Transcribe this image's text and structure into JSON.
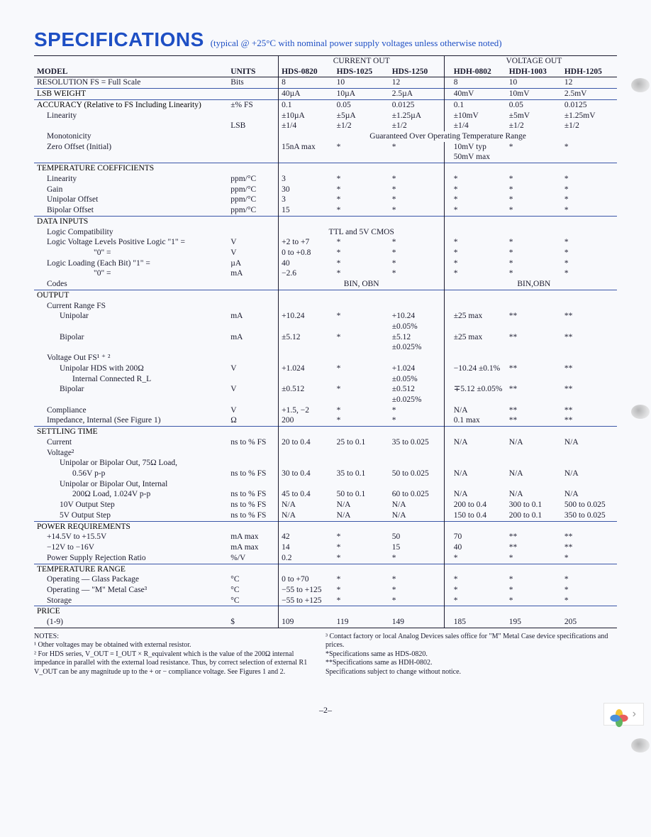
{
  "title": "SPECIFICATIONS",
  "subtitle": "(typical @ +25°C with nominal power supply voltages unless otherwise noted)",
  "group_headers": [
    "CURRENT OUT",
    "VOLTAGE OUT"
  ],
  "col_headers": {
    "model": "MODEL",
    "units": "UNITS",
    "c1": "HDS-0820",
    "c2": "HDS-1025",
    "c3": "HDS-1250",
    "c4": "HDH-0802",
    "c5": "HDH-1003",
    "c6": "HDH-1205"
  },
  "rows": [
    {
      "type": "data",
      "top_rule": true,
      "label": "RESOLUTION  FS = Full Scale",
      "units": "Bits",
      "v": [
        "8",
        "10",
        "12",
        "8",
        "10",
        "12"
      ]
    },
    {
      "type": "section",
      "label": "LSB WEIGHT",
      "units": "",
      "v": [
        "40µA",
        "10µA",
        "2.5µA",
        "40mV",
        "10mV",
        "2.5mV"
      ]
    },
    {
      "type": "section",
      "label": "ACCURACY (Relative to FS Including Linearity)",
      "units": "±% FS",
      "v": [
        "0.1",
        "0.05",
        "0.0125",
        "0.1",
        "0.05",
        "0.0125"
      ]
    },
    {
      "type": "data",
      "ind": 1,
      "label": "Linearity",
      "units": "",
      "v": [
        "±10µA",
        "±5µA",
        "±1.25µA",
        "±10mV",
        "±5mV",
        "±1.25mV"
      ]
    },
    {
      "type": "data",
      "label": "",
      "units": "LSB",
      "v": [
        "±1/4",
        "±1/2",
        "±1/2",
        "±1/4",
        "±1/2",
        "±1/2"
      ]
    },
    {
      "type": "span",
      "ind": 1,
      "label": "Monotonicity",
      "units": "",
      "span_text": "Guaranteed Over Operating Temperature Range"
    },
    {
      "type": "data",
      "ind": 1,
      "label": "Zero Offset (Initial)",
      "units": "",
      "v": [
        "15nA max",
        "*",
        "*",
        "10mV typ",
        "*",
        "*"
      ]
    },
    {
      "type": "data",
      "label": "",
      "units": "",
      "v": [
        "",
        "",
        "",
        "50mV max",
        "",
        ""
      ]
    },
    {
      "type": "section",
      "label": "TEMPERATURE COEFFICIENTS",
      "units": "",
      "v": [
        "",
        "",
        "",
        "",
        "",
        ""
      ]
    },
    {
      "type": "data",
      "ind": 1,
      "label": "Linearity",
      "units": "ppm/°C",
      "v": [
        "3",
        "*",
        "*",
        "*",
        "*",
        "*"
      ]
    },
    {
      "type": "data",
      "ind": 1,
      "label": "Gain",
      "units": "ppm/°C",
      "v": [
        "30",
        "*",
        "*",
        "*",
        "*",
        "*"
      ]
    },
    {
      "type": "data",
      "ind": 1,
      "label": "Unipolar Offset",
      "units": "ppm/°C",
      "v": [
        "3",
        "*",
        "*",
        "*",
        "*",
        "*"
      ]
    },
    {
      "type": "data",
      "ind": 1,
      "label": "Bipolar Offset",
      "units": "ppm/°C",
      "v": [
        "15",
        "*",
        "*",
        "*",
        "*",
        "*"
      ]
    },
    {
      "type": "section",
      "label": "DATA INPUTS",
      "units": "",
      "v": [
        "",
        "",
        "",
        "",
        "",
        ""
      ]
    },
    {
      "type": "splitspan",
      "ind": 1,
      "label": "Logic Compatibility",
      "units": "",
      "left_span": "TTL and 5V CMOS",
      "right": [
        "",
        "",
        ""
      ]
    },
    {
      "type": "data",
      "ind": 1,
      "label": "Logic Voltage Levels Positive Logic \"1\"   =",
      "units": "V",
      "v": [
        "+2 to +7",
        "*",
        "*",
        "*",
        "*",
        "*"
      ]
    },
    {
      "type": "data",
      "ind": 4,
      "label": "\"0\"   =",
      "units": "V",
      "v": [
        "0 to +0.8",
        "*",
        "*",
        "*",
        "*",
        "*"
      ]
    },
    {
      "type": "data",
      "ind": 1,
      "label": "Logic Loading (Each Bit)          \"1\"   =",
      "units": "µA",
      "v": [
        "40",
        "*",
        "*",
        "*",
        "*",
        "*"
      ]
    },
    {
      "type": "data",
      "ind": 4,
      "label": "\"0\"   =",
      "units": "mA",
      "v": [
        "−2.6",
        "*",
        "*",
        "*",
        "*",
        "*"
      ]
    },
    {
      "type": "splitspan",
      "ind": 1,
      "label": "Codes",
      "units": "",
      "left_span": "BIN, OBN",
      "right_span": "BIN,OBN"
    },
    {
      "type": "section",
      "label": "OUTPUT",
      "units": "",
      "v": [
        "",
        "",
        "",
        "",
        "",
        ""
      ]
    },
    {
      "type": "data",
      "ind": 1,
      "label": "Current Range FS",
      "units": "",
      "v": [
        "",
        "",
        "",
        "",
        "",
        ""
      ]
    },
    {
      "type": "data",
      "ind": 2,
      "label": "Unipolar",
      "units": "mA",
      "v": [
        "+10.24",
        "*",
        "+10.24",
        "±25 max",
        "**",
        "**"
      ]
    },
    {
      "type": "data",
      "label": "",
      "units": "",
      "v": [
        "",
        "",
        "±0.05%",
        "",
        "",
        ""
      ]
    },
    {
      "type": "data",
      "ind": 2,
      "label": "Bipolar",
      "units": "mA",
      "v": [
        "±5.12",
        "*",
        "±5.12",
        "±25 max",
        "**",
        "**"
      ]
    },
    {
      "type": "data",
      "label": "",
      "units": "",
      "v": [
        "",
        "",
        "±0.025%",
        "",
        "",
        ""
      ]
    },
    {
      "type": "data",
      "ind": 1,
      "label": "Voltage Out FS¹ ⁺ ²",
      "units": "",
      "v": [
        "",
        "",
        "",
        "",
        "",
        ""
      ]
    },
    {
      "type": "data",
      "ind": 2,
      "label": "Unipolar    HDS with 200Ω",
      "units": "V",
      "v": [
        "+1.024",
        "*",
        "+1.024",
        "−10.24 ±0.1%",
        "**",
        "**"
      ]
    },
    {
      "type": "data",
      "ind": 3,
      "label": "Internal Connected R_L",
      "units": "",
      "v": [
        "",
        "",
        "±0.05%",
        "",
        "",
        ""
      ]
    },
    {
      "type": "data",
      "ind": 2,
      "label": "Bipolar",
      "units": "V",
      "v": [
        "±0.512",
        "*",
        "±0.512",
        "∓5.12 ±0.05%",
        "**",
        "**"
      ]
    },
    {
      "type": "data",
      "label": "",
      "units": "",
      "v": [
        "",
        "",
        "±0.025%",
        "",
        "",
        ""
      ]
    },
    {
      "type": "data",
      "ind": 1,
      "label": "Compliance",
      "units": "V",
      "v": [
        "+1.5, −2",
        "*",
        "*",
        "N/A",
        "**",
        "**"
      ]
    },
    {
      "type": "data",
      "ind": 1,
      "label": "Impedance, Internal (See Figure 1)",
      "units": "Ω",
      "v": [
        "200",
        "*",
        "*",
        "0.1 max",
        "**",
        "**"
      ]
    },
    {
      "type": "section",
      "label": "SETTLING TIME",
      "units": "",
      "v": [
        "",
        "",
        "",
        "",
        "",
        ""
      ]
    },
    {
      "type": "data",
      "ind": 1,
      "label": "Current",
      "units": "ns to % FS",
      "v": [
        "20 to 0.4",
        "25 to 0.1",
        "35 to 0.025",
        "N/A",
        "N/A",
        "N/A"
      ]
    },
    {
      "type": "data",
      "ind": 1,
      "label": "Voltage²",
      "units": "",
      "v": [
        "",
        "",
        "",
        "",
        "",
        ""
      ]
    },
    {
      "type": "data",
      "ind": 2,
      "label": "Unipolar or Bipolar Out, 75Ω Load,",
      "units": "",
      "v": [
        "",
        "",
        "",
        "",
        "",
        ""
      ]
    },
    {
      "type": "data",
      "ind": 3,
      "label": "0.56V p-p",
      "units": "ns to % FS",
      "v": [
        "30 to 0.4",
        "35 to 0.1",
        "50 to 0.025",
        "N/A",
        "N/A",
        "N/A"
      ]
    },
    {
      "type": "data",
      "ind": 2,
      "label": "Unipolar or Bipolar Out, Internal",
      "units": "",
      "v": [
        "",
        "",
        "",
        "",
        "",
        ""
      ]
    },
    {
      "type": "data",
      "ind": 3,
      "label": "200Ω Load, 1.024V p-p",
      "units": "ns to % FS",
      "v": [
        "45 to 0.4",
        "50 to 0.1",
        "60 to 0.025",
        "N/A",
        "N/A",
        "N/A"
      ]
    },
    {
      "type": "data",
      "ind": 2,
      "label": "10V Output Step",
      "units": "ns to % FS",
      "v": [
        "N/A",
        "N/A",
        "N/A",
        "200 to 0.4",
        "300 to 0.1",
        "500 to 0.025"
      ]
    },
    {
      "type": "data",
      "ind": 2,
      "label": "5V Output Step",
      "units": "ns to % FS",
      "v": [
        "N/A",
        "N/A",
        "N/A",
        "150 to 0.4",
        "200 to 0.1",
        "350 to 0.025"
      ]
    },
    {
      "type": "section",
      "label": "POWER REQUIREMENTS",
      "units": "",
      "v": [
        "",
        "",
        "",
        "",
        "",
        ""
      ]
    },
    {
      "type": "data",
      "ind": 1,
      "label": "+14.5V to +15.5V",
      "units": "mA max",
      "v": [
        "42",
        "*",
        "50",
        "70",
        "**",
        "**"
      ]
    },
    {
      "type": "data",
      "ind": 1,
      "label": "−12V to −16V",
      "units": "mA max",
      "v": [
        "14",
        "*",
        "15",
        "40",
        "**",
        "**"
      ]
    },
    {
      "type": "data",
      "ind": 1,
      "label": "Power Supply Rejection Ratio",
      "units": "%/V",
      "v": [
        "0.2",
        "*",
        "*",
        "*",
        "*",
        "*"
      ]
    },
    {
      "type": "section",
      "label": "TEMPERATURE RANGE",
      "units": "",
      "v": [
        "",
        "",
        "",
        "",
        "",
        ""
      ]
    },
    {
      "type": "data",
      "ind": 1,
      "label": "Operating — Glass Package",
      "units": "°C",
      "v": [
        "0 to +70",
        "*",
        "*",
        "*",
        "*",
        "*"
      ]
    },
    {
      "type": "data",
      "ind": 1,
      "label": "Operating — \"M\" Metal Case³",
      "units": "°C",
      "v": [
        "−55 to +125",
        "*",
        "*",
        "*",
        "*",
        "*"
      ]
    },
    {
      "type": "data",
      "ind": 1,
      "label": "Storage",
      "units": "°C",
      "v": [
        "−55 to +125",
        "*",
        "*",
        "*",
        "*",
        "*"
      ]
    },
    {
      "type": "section",
      "label": "PRICE",
      "units": "",
      "v": [
        "",
        "",
        "",
        "",
        "",
        ""
      ]
    },
    {
      "type": "data",
      "ind": 1,
      "label": "(1-9)",
      "units": "$",
      "bottom_rule": true,
      "v": [
        "109",
        "119",
        "149",
        "185",
        "195",
        "205"
      ]
    }
  ],
  "notes": {
    "header": "NOTES:",
    "left": [
      "¹ Other voltages may be obtained with external resistor.",
      "² For HDS series, V_OUT = I_OUT × R_equivalent which is the value of the 200Ω internal impedance in parallel with the external load resistance. Thus, by correct selection of external R1 V_OUT can be any magnitude up to the + or − compliance voltage. See Figures 1 and 2."
    ],
    "right": [
      "³ Contact factory or local Analog Devices sales office for \"M\" Metal Case device specifications and prices.",
      "*Specifications same as HDS-0820.",
      "**Specifications same as HDH-0802.",
      "Specifications subject to change without notice."
    ]
  },
  "page_number": "–2–",
  "colors": {
    "title": "#1e4fc4",
    "rule": "#1a1a2e",
    "section_rule": "#3a56a8",
    "bg": "#f8f9fc"
  }
}
